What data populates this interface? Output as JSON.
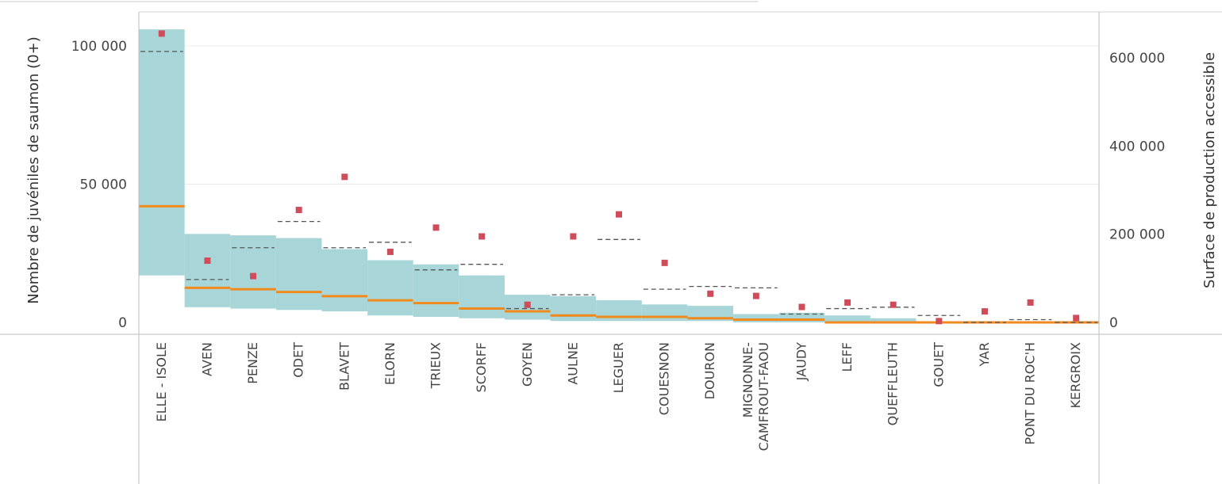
{
  "chart_data": {
    "type": "bar",
    "ylabel": "Nombre de juvéniles de saumon (0+)",
    "y2label": "Surface de production accessible",
    "ylim": [
      0,
      105000
    ],
    "y2lim": [
      0,
      680000
    ],
    "y_ticks": [
      0,
      50000,
      100000
    ],
    "y_tick_labels": [
      "0",
      "50 000",
      "100 000"
    ],
    "y2_ticks": [
      0,
      200000,
      400000,
      600000
    ],
    "y2_tick_labels": [
      "0",
      "200 000",
      "400 000",
      "600 000"
    ],
    "grid": true,
    "colors": {
      "band": "#a8d6d8",
      "median": "#f08a1c",
      "dashed": "#555555",
      "marker": "#cf4d5b",
      "grid": "#ececec",
      "axis": "#bbbbbb"
    },
    "categories": [
      {
        "label": "ELLE - ISOLE",
        "min": 17000,
        "max": 106000,
        "median": 42000,
        "dashed": 98000,
        "marker": 655000
      },
      {
        "label": "AVEN",
        "min": 5500,
        "max": 32000,
        "median": 12500,
        "dashed": 15500,
        "marker": 140000
      },
      {
        "label": "PENZE",
        "min": 5000,
        "max": 31500,
        "median": 12000,
        "dashed": 27000,
        "marker": 105000
      },
      {
        "label": "ODET",
        "min": 4500,
        "max": 30500,
        "median": 11000,
        "dashed": 36500,
        "marker": 255000
      },
      {
        "label": "BLAVET",
        "min": 4000,
        "max": 26500,
        "median": 9500,
        "dashed": 27000,
        "marker": 330000
      },
      {
        "label": "ELORN",
        "min": 2500,
        "max": 22500,
        "median": 8000,
        "dashed": 29000,
        "marker": 160000
      },
      {
        "label": "TRIEUX",
        "min": 2000,
        "max": 21000,
        "median": 7000,
        "dashed": 19000,
        "marker": 215000
      },
      {
        "label": "SCORFF",
        "min": 1500,
        "max": 17000,
        "median": 5000,
        "dashed": 21000,
        "marker": 195000
      },
      {
        "label": "GOYEN",
        "min": 1000,
        "max": 10000,
        "median": 4000,
        "dashed": 5000,
        "marker": 40000
      },
      {
        "label": "AULNE",
        "min": 500,
        "max": 9500,
        "median": 2500,
        "dashed": 10000,
        "marker": 195000
      },
      {
        "label": "LEGUER",
        "min": 500,
        "max": 8000,
        "median": 2000,
        "dashed": 30000,
        "marker": 245000
      },
      {
        "label": "COUESNON",
        "min": 500,
        "max": 6500,
        "median": 2000,
        "dashed": 12000,
        "marker": 135000
      },
      {
        "label": "DOURON",
        "min": 500,
        "max": 6000,
        "median": 1500,
        "dashed": 13000,
        "marker": 65000
      },
      {
        "label": "MIGNONNE-\nCAMFROUT-FAOU",
        "min": 0,
        "max": 3000,
        "median": 1000,
        "dashed": 12500,
        "marker": 60000
      },
      {
        "label": "JAUDY",
        "min": 0,
        "max": 3500,
        "median": 1000,
        "dashed": 3000,
        "marker": 35000
      },
      {
        "label": "LEFF",
        "min": 0,
        "max": 2500,
        "median": 0,
        "dashed": 5000,
        "marker": 45000
      },
      {
        "label": "QUEFFLEUTH",
        "min": 0,
        "max": 1500,
        "median": 0,
        "dashed": 5500,
        "marker": 40000
      },
      {
        "label": "GOUET",
        "min": 0,
        "max": 0,
        "median": 0,
        "dashed": 2500,
        "marker": 3000
      },
      {
        "label": "YAR",
        "min": 0,
        "max": 0,
        "median": 0,
        "dashed": 0,
        "marker": 25000
      },
      {
        "label": "PONT DU ROC'H",
        "min": 0,
        "max": 0,
        "median": 0,
        "dashed": 1000,
        "marker": 45000
      },
      {
        "label": "KERGROIX",
        "min": 0,
        "max": 0,
        "median": 0,
        "dashed": 0,
        "marker": 10000
      }
    ]
  }
}
